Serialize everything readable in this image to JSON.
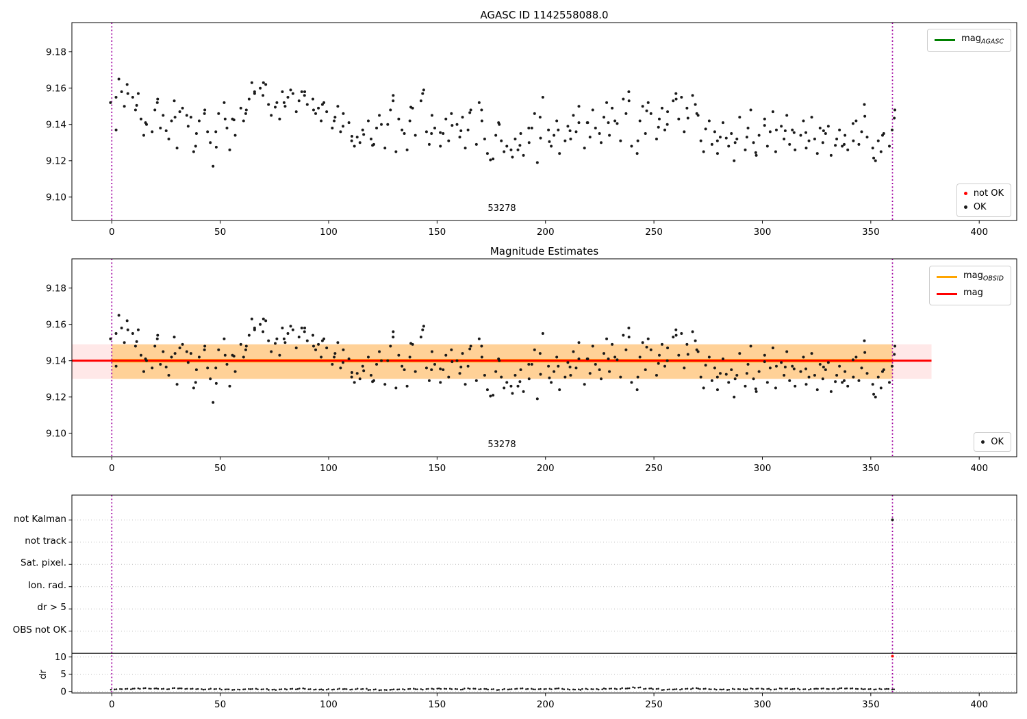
{
  "figure": {
    "background": "#ffffff"
  },
  "colors": {
    "vline": "#a000a0",
    "agasc_line": "#008000",
    "obsid_line": "#ffa500",
    "mag_line": "#ff0000",
    "point": "#1a1a1a",
    "not_ok": "#ff0000",
    "grid": "#bbbbbb",
    "threshold_line": "#000000",
    "mag_band": "rgba(255,0,0,0.09)",
    "obsid_band": "rgba(255,165,0,0.35)",
    "legend_border": "#cccccc"
  },
  "chart_data": [
    {
      "type": "scatter",
      "title": "AGASC ID 1142558088.0",
      "annotation": "53278",
      "xlim": [
        -18.4,
        417.3
      ],
      "xticks": [
        0,
        50,
        100,
        150,
        200,
        250,
        300,
        350,
        400
      ],
      "ylim": [
        9.0871,
        9.1961
      ],
      "ytick_values": [
        9.18,
        9.16,
        9.14,
        9.12,
        9.1
      ],
      "ytick_labels": [
        "9.18",
        "9.16",
        "9.14",
        "9.12",
        "9.10"
      ],
      "vlines": [
        0,
        360
      ],
      "grid": false,
      "legend_position": "upper right / lower right",
      "legend_line": {
        "label": "mag",
        "sub": "AGASC"
      },
      "legend_markers": [
        {
          "label": "not OK",
          "color_key": "not_ok"
        },
        {
          "label": "OK",
          "color_key": "point"
        }
      ],
      "series": {
        "name": "OK",
        "x_start": 0,
        "x_end": 361,
        "base_mag": 9.14,
        "offsets_millimag": [
          12,
          -3,
          25,
          18,
          10,
          22,
          15,
          8,
          17,
          3,
          -6,
          0,
          -4,
          8,
          14,
          -2,
          5,
          -8,
          2,
          13,
          -13,
          7,
          9,
          -1,
          4,
          -15,
          -5,
          2,
          8,
          -4,
          -10,
          -23,
          -4,
          6,
          12,
          -2,
          -14,
          3,
          -6,
          9,
          2,
          8,
          14,
          23,
          17,
          20,
          16,
          22,
          11,
          5,
          12,
          3,
          18,
          10,
          15,
          19,
          7,
          13,
          18,
          16,
          11,
          14,
          6,
          9,
          2,
          12,
          7,
          -2,
          4,
          10,
          -4,
          6,
          1,
          -9,
          -12,
          -7,
          -10,
          -3,
          2,
          -8,
          -11,
          -2,
          5,
          -13,
          0,
          8,
          16,
          -15,
          3,
          -5,
          -14,
          2,
          9,
          -6,
          13,
          19,
          -4,
          -11,
          5,
          -2,
          -12,
          -5,
          3,
          -9,
          6,
          0,
          -7,
          4,
          -13,
          -3,
          8,
          -11,
          12,
          2,
          -8,
          -16,
          -19,
          -6,
          1,
          -9,
          -15,
          -12,
          -18,
          -8,
          -14,
          -5,
          -17,
          -10,
          -2,
          6,
          -21,
          4,
          15,
          -3,
          -12,
          -6,
          2,
          -16,
          -9,
          -1,
          -8,
          5,
          -4,
          10,
          -13,
          1,
          -7,
          8,
          -2,
          -10,
          4,
          12,
          -6,
          9,
          2,
          -9,
          14,
          6,
          18,
          -12,
          -16,
          2,
          10,
          -5,
          12,
          6,
          -8,
          3,
          9,
          -3,
          7,
          13,
          17,
          3,
          15,
          -4,
          9,
          16,
          11,
          5,
          -9,
          -15,
          2,
          -11,
          -4,
          -16,
          -7,
          1,
          -12,
          -5,
          -20,
          -8,
          4,
          -14,
          -2,
          8,
          -10,
          -17,
          -6,
          3,
          -12,
          -4,
          7,
          -15,
          -1,
          -8,
          5,
          -11,
          -3,
          -14,
          -6,
          2,
          -13,
          -9,
          4,
          -16,
          -2,
          -10,
          -5,
          -1,
          -17,
          -8,
          -3,
          -12,
          -6,
          -14,
          -9,
          2,
          -11,
          -4,
          11,
          -7,
          -13,
          -20,
          -9,
          -15,
          -5,
          -12,
          -3,
          8
        ]
      }
    },
    {
      "type": "scatter",
      "title": "Magnitude Estimates",
      "annotation": "53278",
      "xlim": [
        -18.4,
        417.3
      ],
      "xticks": [
        0,
        50,
        100,
        150,
        200,
        250,
        300,
        350,
        400
      ],
      "ylim": [
        9.0871,
        9.1961
      ],
      "ytick_values": [
        9.18,
        9.16,
        9.14,
        9.12,
        9.1
      ],
      "ytick_labels": [
        "9.18",
        "9.16",
        "9.14",
        "9.12",
        "9.10"
      ],
      "vlines": [
        0,
        360
      ],
      "grid": false,
      "mag": {
        "value": 9.14,
        "band": [
          9.13,
          9.149
        ],
        "extent": [
          -18.4,
          378
        ]
      },
      "mag_obsid": {
        "value": 9.14,
        "band": [
          9.13,
          9.149
        ],
        "extent": [
          0,
          360
        ]
      },
      "legend_lines": [
        {
          "label": "mag",
          "sub": "OBSID",
          "color_key": "obsid_line"
        },
        {
          "label": "mag",
          "sub": "",
          "color_key": "mag_line"
        }
      ],
      "legend_markers": [
        {
          "label": "OK",
          "color_key": "point"
        }
      ],
      "series_note": "same OK scatter points as first panel"
    },
    {
      "type": "flags_dr",
      "categories": [
        "not Kalman",
        "not track",
        "Sat. pixel.",
        "Ion. rad.",
        "dr > 5",
        "OBS not OK"
      ],
      "dr_ylabel": "dr",
      "dr_ticks": [
        10,
        5,
        0
      ],
      "xticks": [
        0,
        50,
        100,
        150,
        200,
        250,
        300,
        350,
        400
      ],
      "xlim": [
        -18.4,
        417.3
      ],
      "vlines": [
        0,
        360
      ],
      "grid": true,
      "threshold_dr": 11,
      "flag_points": [
        {
          "x": 360,
          "category": "not Kalman"
        }
      ],
      "outlier_points": [
        {
          "x": 360,
          "dr": 10.2,
          "status": "not OK"
        }
      ],
      "dr_series": {
        "x_start": 0,
        "x_end": 361,
        "values": [
          0.6,
          0.7,
          0.8,
          0.9,
          0.8,
          0.7,
          0.9,
          0.8,
          0.7,
          0.6,
          0.7,
          0.6,
          0.5,
          0.6,
          0.7,
          0.6,
          0.5,
          0.6,
          0.7,
          0.8,
          0.6,
          0.5,
          0.6,
          0.7,
          0.6,
          0.7,
          0.5,
          0.4,
          0.5,
          0.6,
          0.7,
          0.6,
          0.7,
          0.8,
          0.7,
          0.6,
          0.8,
          0.7,
          0.6,
          0.5,
          0.6,
          0.8,
          0.7,
          0.6,
          0.7,
          0.8,
          0.6,
          0.5,
          0.7,
          0.6,
          0.8,
          0.7,
          0.9,
          1.1,
          0.8,
          0.7,
          0.5,
          0.6,
          0.7,
          0.9,
          0.7,
          0.6,
          0.5,
          0.7,
          0.6,
          0.8,
          0.7,
          0.6,
          0.8,
          0.7,
          0.6,
          0.7,
          0.8,
          0.7,
          0.9,
          0.8,
          0.7,
          0.6,
          0.7,
          0.6
        ]
      }
    }
  ]
}
